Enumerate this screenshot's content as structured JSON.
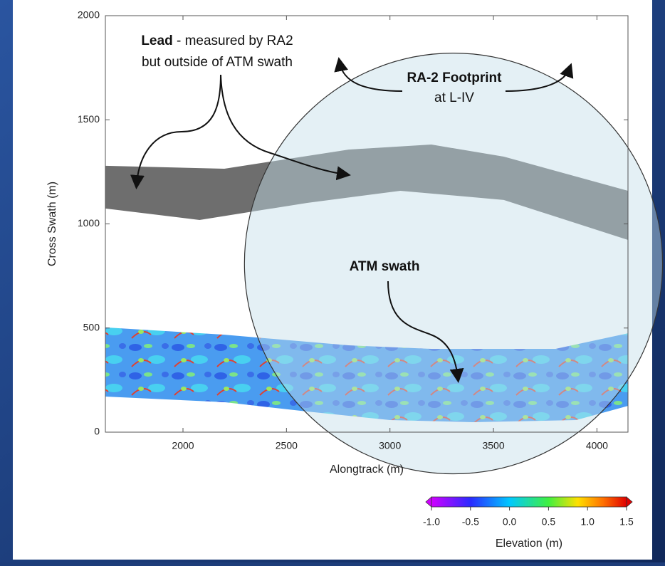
{
  "chart_data": {
    "type": "region-map",
    "xlabel": "Alongtrack (m)",
    "ylabel": "Cross Swath (m)",
    "xlim": [
      1625,
      4150
    ],
    "ylim": [
      0,
      2000
    ],
    "xticks": [
      2000,
      2500,
      3000,
      3500,
      4000
    ],
    "yticks": [
      0,
      500,
      1000,
      1500,
      2000
    ],
    "annotations": {
      "lead_bold": "Lead",
      "lead_rest": " - measured by RA2",
      "lead_line2": "but outside of ATM swath",
      "footprint_bold": "RA-2 Footprint",
      "footprint_line2": "at L-IV",
      "swath_bold": "ATM swath"
    },
    "lead": {
      "color": "#6e6e6e",
      "upper": {
        "x": [
          1625,
          2200,
          2800,
          3200,
          3550,
          4150
        ],
        "values": [
          1279,
          1265,
          1357,
          1381,
          1323,
          1159
        ]
      },
      "lower": {
        "x": [
          1625,
          2080,
          2600,
          3050,
          3550,
          4150
        ],
        "values": [
          1074,
          1019,
          1101,
          1159,
          1115,
          923
        ]
      }
    },
    "atm_swath": {
      "upper": {
        "x": [
          1625,
          2200,
          2800,
          3200,
          3800,
          4150
        ],
        "values": [
          503,
          468,
          417,
          400,
          400,
          475
        ]
      },
      "lower": {
        "x": [
          1625,
          2200,
          2600,
          3000,
          3400,
          3900,
          4150
        ],
        "values": [
          171,
          144,
          99,
          58,
          48,
          58,
          126
        ]
      }
    },
    "footprint": {
      "center": [
        3307,
        810
      ],
      "radius": 1010
    },
    "colorbar": {
      "label": "Elevation (m)",
      "lim": [
        -1,
        1.5
      ],
      "ticks": [
        {
          "value": -1,
          "label": "-1.0"
        },
        -0.5,
        {
          "value": 0,
          "label": "0.0"
        },
        0.5,
        {
          "value": 1,
          "label": "1.0"
        },
        1.5
      ]
    }
  }
}
